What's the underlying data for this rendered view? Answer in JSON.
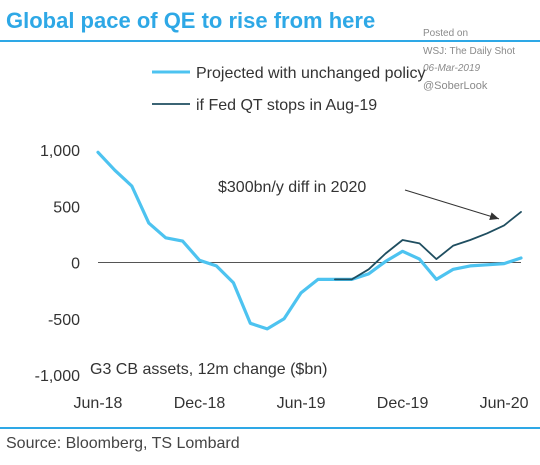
{
  "header": {
    "title": "Global pace of QE to rise from here"
  },
  "watermark": {
    "line1": "Posted on",
    "line2": "WSJ: The Daily Shot",
    "line3": "06-Mar-2019",
    "line4": "@SoberLook"
  },
  "footer": {
    "source": "Source: Bloomberg, TS Lombard"
  },
  "chart_data": {
    "type": "line",
    "title": "Global pace of QE to rise from here",
    "ylabel": "G3 CB assets, 12m change ($bn)",
    "ylim": [
      -1000,
      1000
    ],
    "yticks": [
      1000,
      500,
      0,
      -500,
      -1000
    ],
    "ytick_labels": [
      "1,000",
      "500",
      "0",
      "-500",
      "-1,000"
    ],
    "xtick_labels": [
      "Jun-18",
      "Dec-18",
      "Jun-19",
      "Dec-19",
      "Jun-20"
    ],
    "x_start": "Jun-18",
    "x_end": "Jul-20",
    "x": [
      "Jun-18",
      "Jul-18",
      "Aug-18",
      "Sep-18",
      "Oct-18",
      "Nov-18",
      "Dec-18",
      "Jan-19",
      "Feb-19",
      "Mar-19",
      "Apr-19",
      "May-19",
      "Jun-19",
      "Jul-19",
      "Aug-19",
      "Sep-19",
      "Oct-19",
      "Nov-19",
      "Dec-19",
      "Jan-20",
      "Feb-20",
      "Mar-20",
      "Apr-20",
      "May-20",
      "Jun-20",
      "Jul-20"
    ],
    "series": [
      {
        "name": "Projected with unchanged policy",
        "color": "#4dc3f0",
        "values": [
          980,
          820,
          680,
          350,
          220,
          190,
          20,
          -30,
          -180,
          -540,
          -590,
          -500,
          -270,
          -150,
          -150,
          -150,
          -100,
          10,
          100,
          30,
          -150,
          -60,
          -30,
          -20,
          -10,
          40
        ]
      },
      {
        "name": "if Fed QT stops in Aug-19",
        "color": "#1f4e60",
        "values": [
          null,
          null,
          null,
          null,
          null,
          null,
          null,
          null,
          null,
          null,
          null,
          null,
          null,
          null,
          -150,
          -150,
          -60,
          80,
          200,
          170,
          30,
          150,
          200,
          260,
          330,
          450
        ]
      }
    ],
    "annotation": {
      "text": "$300bn/y diff in 2020",
      "points_to": {
        "x": "Jul-20",
        "y": 450
      }
    },
    "legend_position": "top-right",
    "grid": false
  }
}
